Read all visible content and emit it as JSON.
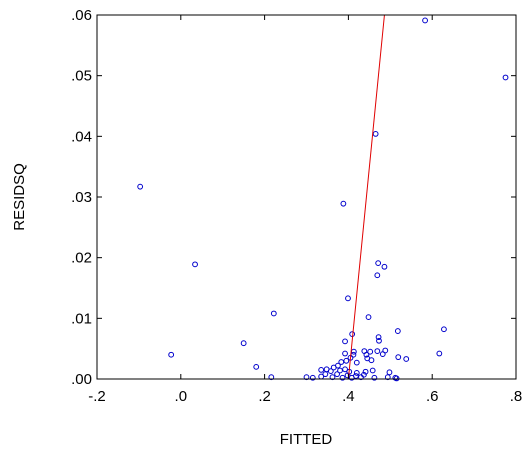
{
  "chart_data": {
    "type": "scatter",
    "title": "",
    "xlabel": "FITTED",
    "ylabel": "RESIDSQ",
    "xlim": [
      -0.2,
      0.8
    ],
    "ylim": [
      0.0,
      0.06
    ],
    "grid": false,
    "x_ticks": [
      -0.2,
      0.0,
      0.2,
      0.4,
      0.6,
      0.8
    ],
    "x_tick_labels": [
      "-.2",
      ".0",
      ".2",
      ".4",
      ".6",
      ".8"
    ],
    "y_ticks": [
      0.0,
      0.01,
      0.02,
      0.03,
      0.04,
      0.05,
      0.06
    ],
    "y_tick_labels": [
      ".00",
      ".01",
      ".02",
      ".03",
      ".04",
      ".05",
      ".06"
    ],
    "colors": {
      "points": "#0000cc",
      "fit_line": "#e00000",
      "axes": "#000000"
    },
    "fit_line": {
      "x": [
        0.4,
        0.486
      ],
      "y": [
        0.0,
        0.06
      ]
    },
    "points": [
      [
        0.583,
        0.0591
      ],
      [
        0.775,
        0.0497
      ],
      [
        0.465,
        0.0404
      ],
      [
        -0.097,
        0.0317
      ],
      [
        0.388,
        0.0289
      ],
      [
        0.034,
        0.0189
      ],
      [
        0.471,
        0.0191
      ],
      [
        0.486,
        0.0185
      ],
      [
        0.469,
        0.0171
      ],
      [
        0.399,
        0.0133
      ],
      [
        0.222,
        0.0108
      ],
      [
        0.448,
        0.0102
      ],
      [
        0.628,
        0.0082
      ],
      [
        0.518,
        0.0079
      ],
      [
        0.409,
        0.0074
      ],
      [
        0.472,
        0.0069
      ],
      [
        0.473,
        0.0063
      ],
      [
        0.15,
        0.0059
      ],
      [
        0.392,
        0.0062
      ],
      [
        0.617,
        0.0042
      ],
      [
        -0.023,
        0.004
      ],
      [
        0.488,
        0.0047
      ],
      [
        0.469,
        0.0046
      ],
      [
        0.452,
        0.0045
      ],
      [
        0.438,
        0.0046
      ],
      [
        0.413,
        0.0045
      ],
      [
        0.412,
        0.004
      ],
      [
        0.392,
        0.0042
      ],
      [
        0.443,
        0.004
      ],
      [
        0.482,
        0.0041
      ],
      [
        0.519,
        0.0036
      ],
      [
        0.538,
        0.0033
      ],
      [
        0.445,
        0.0034
      ],
      [
        0.455,
        0.0031
      ],
      [
        0.405,
        0.0035
      ],
      [
        0.395,
        0.003
      ],
      [
        0.42,
        0.0027
      ],
      [
        0.383,
        0.0028
      ],
      [
        0.375,
        0.0022
      ],
      [
        0.365,
        0.0019
      ],
      [
        0.18,
        0.002
      ],
      [
        0.348,
        0.0016
      ],
      [
        0.335,
        0.0015
      ],
      [
        0.392,
        0.0016
      ],
      [
        0.358,
        0.0013
      ],
      [
        0.38,
        0.0014
      ],
      [
        0.402,
        0.0012
      ],
      [
        0.42,
        0.001
      ],
      [
        0.441,
        0.0012
      ],
      [
        0.458,
        0.0014
      ],
      [
        0.498,
        0.0011
      ],
      [
        0.345,
        0.0008
      ],
      [
        0.373,
        0.0008
      ],
      [
        0.398,
        0.0006
      ],
      [
        0.418,
        0.0005
      ],
      [
        0.437,
        0.0007
      ],
      [
        0.3,
        0.0003
      ],
      [
        0.315,
        0.0002
      ],
      [
        0.335,
        0.0004
      ],
      [
        0.362,
        0.0003
      ],
      [
        0.386,
        0.0002
      ],
      [
        0.408,
        0.0002
      ],
      [
        0.43,
        0.0003
      ],
      [
        0.462,
        0.0002
      ],
      [
        0.494,
        0.0003
      ],
      [
        0.512,
        0.0002
      ],
      [
        0.515,
        0.0001
      ],
      [
        0.216,
        0.0003
      ]
    ]
  }
}
